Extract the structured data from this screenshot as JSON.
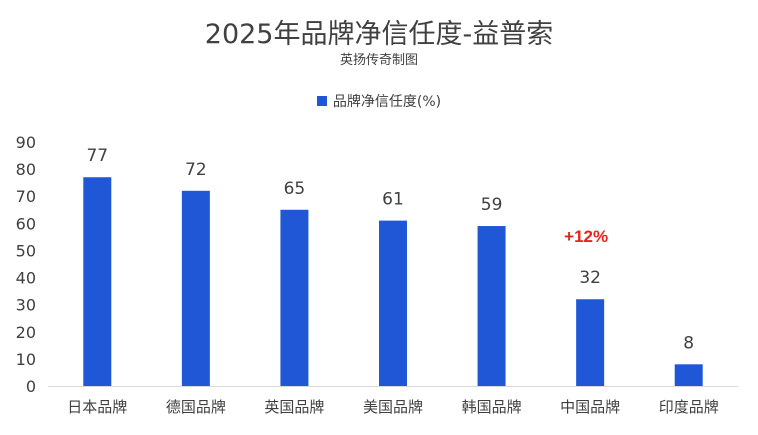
{
  "chart_data": {
    "type": "bar",
    "title": "2025年品牌净信任度-益普索",
    "subtitle": "英扬传奇制图",
    "categories": [
      "日本品牌",
      "德国品牌",
      "英国品牌",
      "美国品牌",
      "韩国品牌",
      "中国品牌",
      "印度品牌"
    ],
    "series": [
      {
        "name": "品牌净信任度(%)",
        "values": [
          77,
          72,
          65,
          61,
          59,
          32,
          8
        ]
      }
    ],
    "yticks": [
      "0",
      "10",
      "20",
      "30",
      "40",
      "50",
      "60",
      "70",
      "80",
      "90"
    ],
    "ylim": [
      0,
      90
    ],
    "grid": false,
    "legend_position": "top-center",
    "annotations": [
      {
        "text": "+12%",
        "category": "中国品牌",
        "color": "#e8231b"
      }
    ],
    "bar_color": "#1f57d6"
  }
}
